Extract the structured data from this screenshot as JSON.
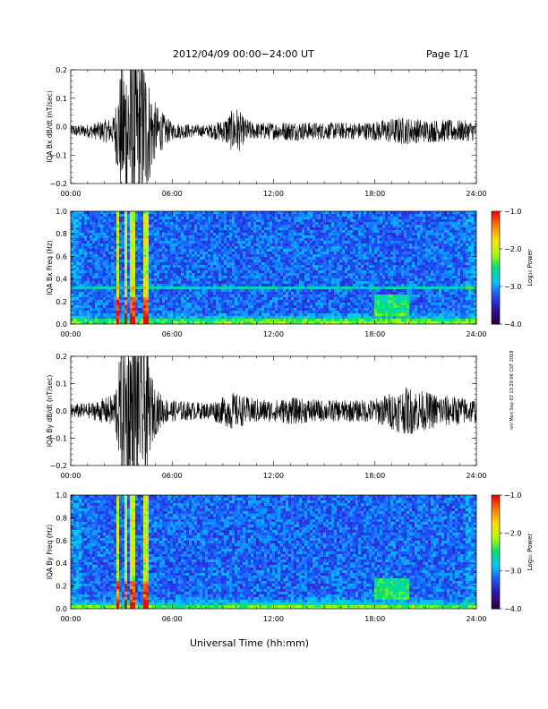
{
  "header": {
    "title": "2012/04/09   00:00−24:00 UT",
    "page": "Page 1/1"
  },
  "x_axis_title": "Universal Time (hh:mm)",
  "footer_text": "nnl Mon Sep 03 13:20:06 CST 2018",
  "chart_data": [
    {
      "type": "line",
      "panel": "bx-waveform",
      "ylabel": "IQA Bx dB/dt (nT/sec)",
      "ylim": [
        -0.2,
        0.2
      ],
      "yticks": [
        -0.2,
        -0.1,
        0.0,
        0.1,
        0.2
      ],
      "ytick_labels": [
        "−0.2",
        "−0.1",
        "0.0",
        "0.1",
        "0.2"
      ],
      "xlim": [
        0,
        24
      ],
      "xticks": [
        0,
        6,
        12,
        18,
        24
      ],
      "xtick_labels": [
        "00:00",
        "06:00",
        "12:00",
        "18:00",
        "24:00"
      ],
      "x_unit": "hours UT",
      "baseline": -0.015,
      "series_color": "#000000",
      "envelope": {
        "x": [
          0,
          1.2,
          2.5,
          2.7,
          3.0,
          3.3,
          3.6,
          3.8,
          4.0,
          4.3,
          4.6,
          5.0,
          5.5,
          6.0,
          8.0,
          9.0,
          9.5,
          9.8,
          10.2,
          10.8,
          12.0,
          13.0,
          15.0,
          17.0,
          18.0,
          19.5,
          21.0,
          22.5,
          24.0
        ],
        "amplitude": [
          0.02,
          0.025,
          0.05,
          0.12,
          0.25,
          0.3,
          0.35,
          0.3,
          0.25,
          0.3,
          0.2,
          0.1,
          0.06,
          0.03,
          0.02,
          0.04,
          0.07,
          0.09,
          0.05,
          0.03,
          0.03,
          0.035,
          0.03,
          0.03,
          0.035,
          0.05,
          0.04,
          0.04,
          0.035
        ]
      }
    },
    {
      "type": "heatmap",
      "panel": "bx-spectrogram",
      "ylabel": "IQA Bx Freq (Hz)",
      "ylim": [
        0.0,
        1.0
      ],
      "yticks": [
        0.0,
        0.2,
        0.4,
        0.6,
        0.8,
        1.0
      ],
      "ytick_labels": [
        "0.0",
        "0.2",
        "0.4",
        "0.6",
        "0.8",
        "1.0"
      ],
      "xlim": [
        0,
        24
      ],
      "xticks": [
        0,
        6,
        12,
        18,
        24
      ],
      "xtick_labels": [
        "00:00",
        "06:00",
        "12:00",
        "18:00",
        "24:00"
      ],
      "colorbar": {
        "label": "Log₁₀ Power",
        "range": [
          -4.0,
          -1.0
        ],
        "ticks": [
          "−1.0",
          "−2.0",
          "−3.0",
          "−4.0"
        ],
        "colors": [
          "#2a0040",
          "#3010a8",
          "#2050ff",
          "#00c8ff",
          "#00e070",
          "#b0ff00",
          "#ffe000",
          "#ff8000",
          "#ff0000"
        ]
      },
      "features": {
        "bursts_hours": [
          2.8,
          3.2,
          3.65,
          4.45
        ],
        "resonance_line_hz": 0.32,
        "enhancement_hours": [
          18.0,
          20.0
        ]
      }
    },
    {
      "type": "line",
      "panel": "by-waveform",
      "ylabel": "IQA By dB/dt (nT/sec)",
      "ylim": [
        -0.2,
        0.2
      ],
      "yticks": [
        -0.2,
        -0.1,
        0.0,
        0.1,
        0.2
      ],
      "ytick_labels": [
        "−0.2",
        "−0.1",
        "0.0",
        "0.1",
        "0.2"
      ],
      "xlim": [
        0,
        24
      ],
      "xticks": [
        0,
        6,
        12,
        18,
        24
      ],
      "xtick_labels": [
        "00:00",
        "06:00",
        "12:00",
        "18:00",
        "24:00"
      ],
      "x_unit": "hours UT",
      "baseline": 0.0,
      "series_color": "#000000",
      "envelope": {
        "x": [
          0,
          1.2,
          2.5,
          2.8,
          3.0,
          3.3,
          3.6,
          3.9,
          4.1,
          4.4,
          4.7,
          5.0,
          5.5,
          6.0,
          8.0,
          9.0,
          9.5,
          10.0,
          10.5,
          12.0,
          13.0,
          15.0,
          17.0,
          18.0,
          19.0,
          20.0,
          21.0,
          22.0,
          24.0
        ],
        "amplitude": [
          0.025,
          0.03,
          0.06,
          0.15,
          0.25,
          0.3,
          0.35,
          0.3,
          0.22,
          0.3,
          0.15,
          0.09,
          0.05,
          0.04,
          0.03,
          0.05,
          0.07,
          0.06,
          0.05,
          0.04,
          0.05,
          0.04,
          0.04,
          0.045,
          0.07,
          0.09,
          0.07,
          0.06,
          0.045
        ]
      }
    },
    {
      "type": "heatmap",
      "panel": "by-spectrogram",
      "ylabel": "IQA By Freq (Hz)",
      "ylim": [
        0.0,
        1.0
      ],
      "yticks": [
        0.0,
        0.2,
        0.4,
        0.6,
        0.8,
        1.0
      ],
      "ytick_labels": [
        "0.0",
        "0.2",
        "0.4",
        "0.6",
        "0.8",
        "1.0"
      ],
      "xlim": [
        0,
        24
      ],
      "xticks": [
        0,
        6,
        12,
        18,
        24
      ],
      "xtick_labels": [
        "00:00",
        "06:00",
        "12:00",
        "18:00",
        "24:00"
      ],
      "colorbar": {
        "label": "Log₁₀ Power",
        "range": [
          -4.0,
          -1.0
        ],
        "ticks": [
          "−1.0",
          "−2.0",
          "−3.0",
          "−4.0"
        ],
        "colors": [
          "#2a0040",
          "#3010a8",
          "#2050ff",
          "#00c8ff",
          "#00e070",
          "#b0ff00",
          "#ffe000",
          "#ff8000",
          "#ff0000"
        ]
      },
      "features": {
        "bursts_hours": [
          2.8,
          3.2,
          3.65,
          4.45
        ],
        "resonance_line_hz": 0.32,
        "enhancement_hours": [
          18.0,
          20.0
        ]
      }
    }
  ]
}
